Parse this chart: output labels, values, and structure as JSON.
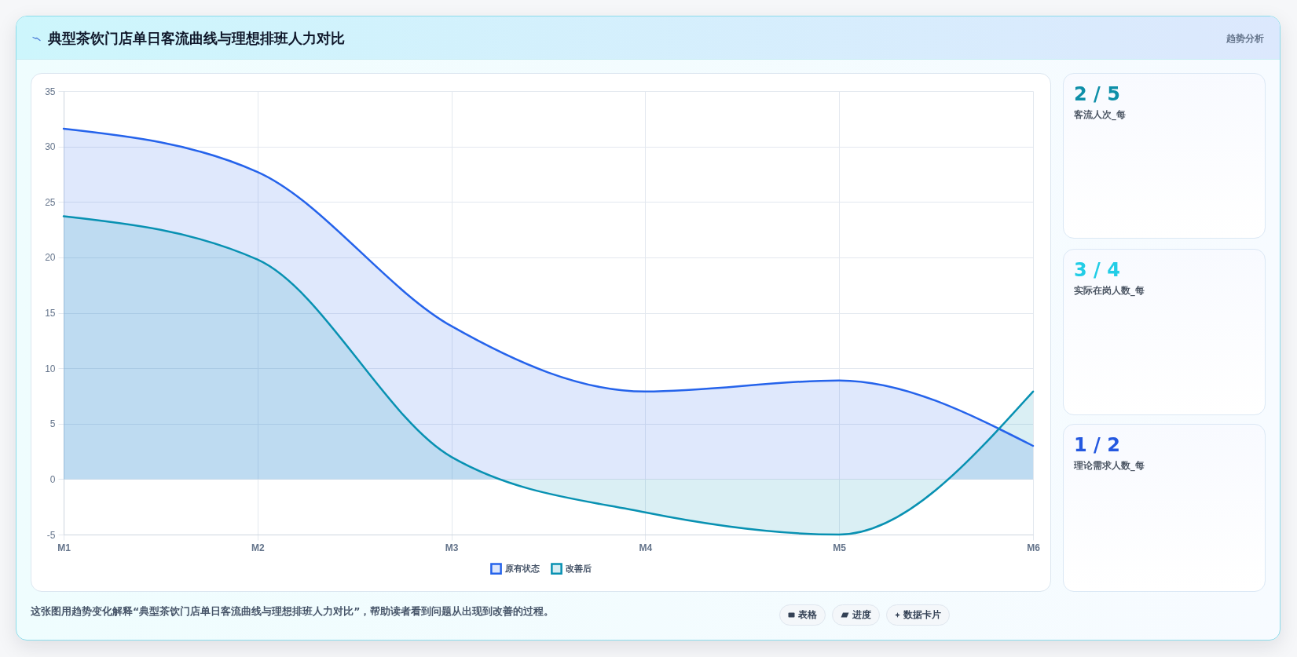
{
  "chart_data": {
    "type": "area",
    "title": "典型茶饮门店单日客流曲线与理想排班人力对比",
    "subtitle": "趋势分析",
    "categories": [
      "M1",
      "M2",
      "M3",
      "M4",
      "M5",
      "M6"
    ],
    "series": [
      {
        "name": "原有状态",
        "color": "#2563eb",
        "values": [
          31.6,
          27.7,
          13.8,
          7.9,
          8.9,
          3.0
        ]
      },
      {
        "name": "改善后",
        "color": "#0891b2",
        "values": [
          23.7,
          19.8,
          2.0,
          -3.0,
          -5.0,
          7.9
        ]
      }
    ],
    "ylim": [
      -5,
      35
    ],
    "yticks": [
      -5,
      0,
      5,
      10,
      15,
      20,
      25,
      30,
      35
    ],
    "grid": true,
    "legend": "bottom",
    "annotations": [
      "2 / 5",
      "客流人次_每",
      "3 / 4",
      "实际在岗人数_每",
      "1 / 2",
      "理论需求人数_每",
      "这张图用趋势变化解释“典型茶饮门店单日客流曲线与理想排班人力对比”，帮助读者看到问题从出现到改善的过程。",
      "表格",
      "进度",
      "数据卡片"
    ]
  }
}
